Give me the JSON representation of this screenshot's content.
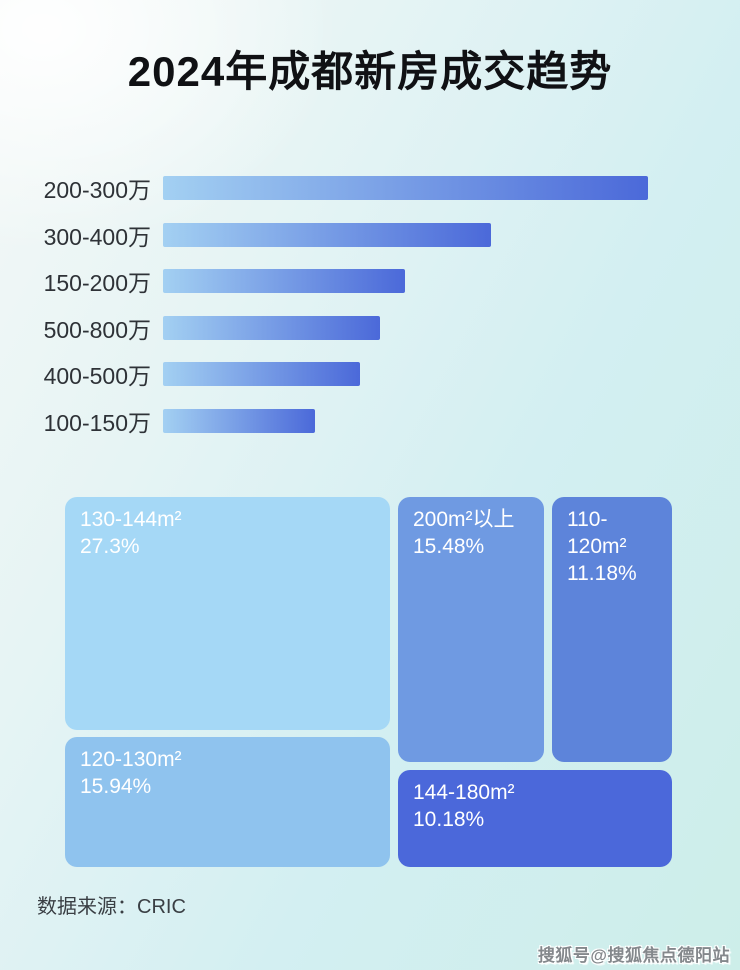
{
  "page": {
    "title": "2024年成都新房成交趋势",
    "source_label": "数据来源：CRIC",
    "watermark": "搜狐号@搜狐焦点德阳站"
  },
  "colors": {
    "bar_gradient_start": "#a3d0f2",
    "bar_gradient_end": "#4b69d9",
    "bar_label_text": "#2e3237",
    "treemap_text": "#ffffff",
    "title_text": "#101114"
  },
  "chart_data": [
    {
      "type": "bar",
      "orientation": "horizontal",
      "title": "2024年成都新房成交趋势",
      "axis_values_shown": false,
      "bars": [
        {
          "label": "200-300万",
          "length_pct_of_max": 100
        },
        {
          "label": "300-400万",
          "length_pct_of_max": 67.6
        },
        {
          "label": "150-200万",
          "length_pct_of_max": 49.9
        },
        {
          "label": "500-800万",
          "length_pct_of_max": 44.7
        },
        {
          "label": "400-500万",
          "length_pct_of_max": 40.6
        },
        {
          "label": "100-150万",
          "length_pct_of_max": 31.3
        }
      ]
    },
    {
      "type": "treemap",
      "items": [
        {
          "label": "130-144m²",
          "pct": "27.3%",
          "value": 27.3,
          "color": "#a5d8f6"
        },
        {
          "label": "120-130m²",
          "pct": "15.94%",
          "value": 15.94,
          "color": "#8fc3ee"
        },
        {
          "label": "200m²以上",
          "pct": "15.48%",
          "value": 15.48,
          "color": "#6f9ae2"
        },
        {
          "label": "110-120m²",
          "pct": "11.18%",
          "value": 11.18,
          "color": "#5d84da"
        },
        {
          "label": "144-180m²",
          "pct": "10.18%",
          "value": 10.18,
          "color": "#4b68da"
        }
      ]
    }
  ]
}
